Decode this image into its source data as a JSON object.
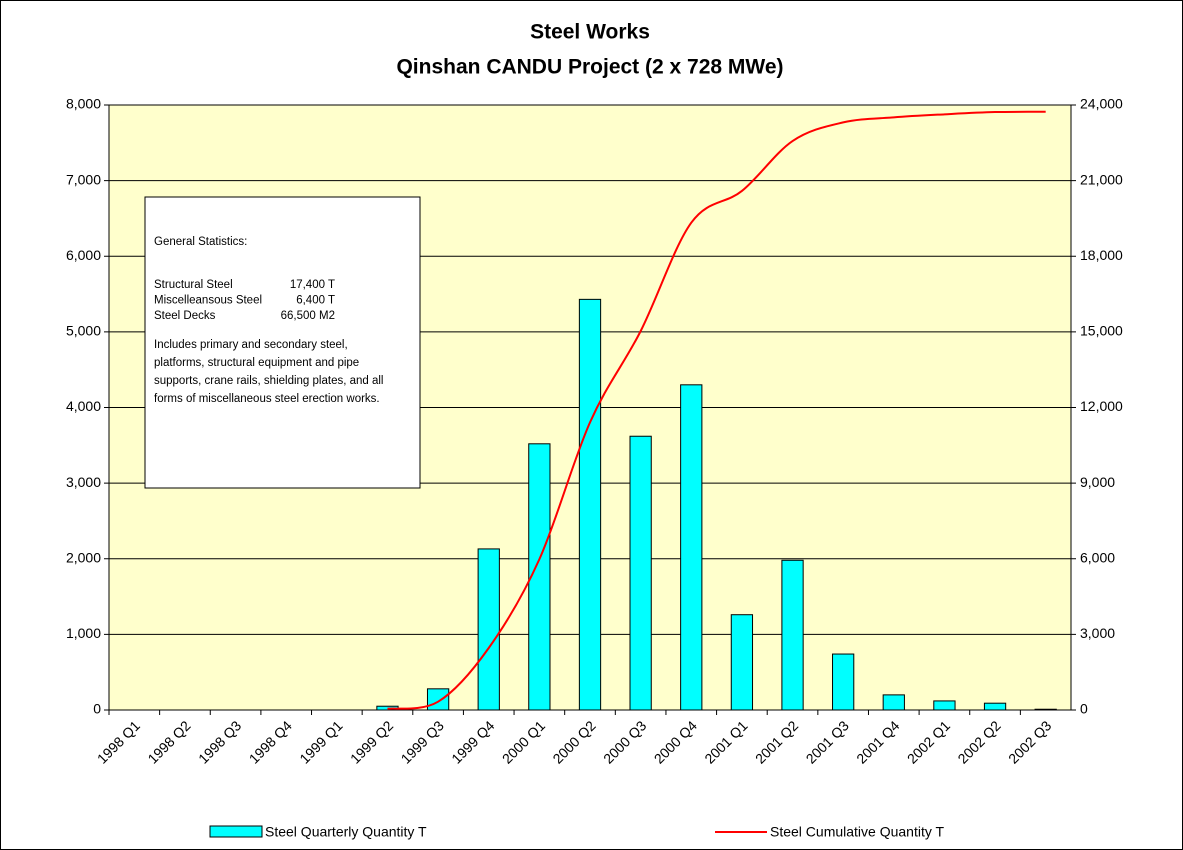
{
  "chart_data": {
    "type": "bar",
    "title": "Steel Works",
    "subtitle": "Qinshan CANDU Project (2 x 728 MWe)",
    "categories": [
      "1998 Q1",
      "1998 Q2",
      "1998 Q3",
      "1998 Q4",
      "1999 Q1",
      "1999 Q2",
      "1999 Q3",
      "1999 Q4",
      "2000 Q1",
      "2000 Q2",
      "2000 Q3",
      "2000 Q4",
      "2001 Q1",
      "2001 Q2",
      "2001 Q3",
      "2001 Q4",
      "2002 Q1",
      "2002 Q2",
      "2002 Q3"
    ],
    "series": [
      {
        "name": "Steel Quarterly Quantity T",
        "type": "bar",
        "color": "#00ffff",
        "values": [
          0,
          0,
          0,
          0,
          0,
          50,
          280,
          2130,
          3520,
          5430,
          3620,
          4300,
          1260,
          1980,
          740,
          200,
          120,
          90,
          10
        ]
      },
      {
        "name": "Steel Cumulative Quantity T",
        "type": "line",
        "axis": "y2",
        "color": "#ff0000",
        "values": [
          null,
          null,
          null,
          null,
          null,
          50,
          330,
          2460,
          5980,
          11410,
          15030,
          19330,
          20590,
          22570,
          23310,
          23510,
          23630,
          23720,
          23730
        ]
      }
    ],
    "ylim": [
      0,
      8000
    ],
    "yticks": [
      0,
      {
        "value": 1000,
        "label": "1,000"
      },
      {
        "value": 2000,
        "label": "2,000"
      },
      {
        "value": 3000,
        "label": "3,000"
      },
      {
        "value": 4000,
        "label": "4,000"
      },
      {
        "value": 5000,
        "label": "5,000"
      },
      {
        "value": 6000,
        "label": "6,000"
      },
      {
        "value": 7000,
        "label": "7,000"
      },
      {
        "value": 8000,
        "label": "8,000"
      }
    ],
    "y2lim": [
      0,
      24000
    ],
    "y2ticks": [
      0,
      {
        "value": 3000,
        "label": "3,000"
      },
      {
        "value": 6000,
        "label": "6,000"
      },
      {
        "value": 9000,
        "label": "9,000"
      },
      {
        "value": 12000,
        "label": "12,000"
      },
      {
        "value": 15000,
        "label": "15,000"
      },
      {
        "value": 18000,
        "label": "18,000"
      },
      {
        "value": 21000,
        "label": "21,000"
      },
      {
        "value": 24000,
        "label": "24,000"
      }
    ],
    "grid": true,
    "legend": "bottom",
    "background": "#ffffcc",
    "annotation": {
      "heading": "General Statistics:",
      "items": [
        {
          "name": "Structural Steel",
          "value": "17,400 T"
        },
        {
          "name": "Miscelleansous Steel",
          "value": "6,400 T"
        },
        {
          "name": "Steel Decks",
          "value": "66,500 M2"
        }
      ],
      "note_lines": [
        "Includes primary and secondary steel,",
        "platforms, structural equipment and pipe",
        "supports, crane rails, shielding plates, and all",
        "forms of miscellaneous steel erection works."
      ]
    }
  }
}
